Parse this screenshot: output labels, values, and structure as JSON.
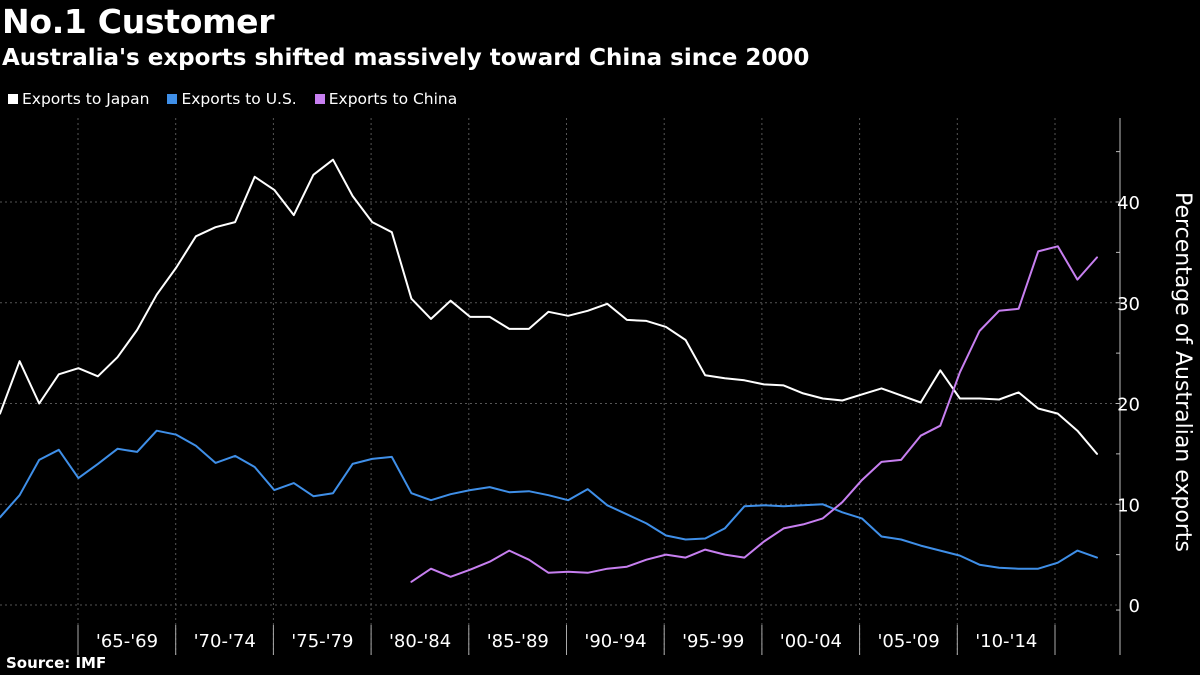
{
  "header": {
    "title": "No.1 Customer",
    "subtitle": "Australia's exports shifted massively toward China since 2000"
  },
  "legend": [
    {
      "label": "Exports to Japan",
      "color": "#ffffff"
    },
    {
      "label": "Exports to U.S.",
      "color": "#3f8fe8"
    },
    {
      "label": "Exports to China",
      "color": "#c77ff0"
    }
  ],
  "source": "Source: IMF",
  "chart_data": {
    "type": "line",
    "title": "No.1 Customer",
    "subtitle": "Australia's exports shifted massively toward China since 2000",
    "xlabel": "",
    "ylabel": "Percentage of Australian exports",
    "ylim": [
      -1.5,
      48
    ],
    "yticks": [
      0,
      10,
      20,
      30,
      40
    ],
    "xlim": [
      1960,
      2017
    ],
    "x_ticklabels": [
      {
        "label": "'65-'69",
        "x": 1965
      },
      {
        "label": "'70-'74",
        "x": 1970
      },
      {
        "label": "'75-'79",
        "x": 1975
      },
      {
        "label": "'80-'84",
        "x": 1980
      },
      {
        "label": "'85-'89",
        "x": 1985
      },
      {
        "label": "'90-'94",
        "x": 1990
      },
      {
        "label": "'95-'99",
        "x": 1995
      },
      {
        "label": "'00-'04",
        "x": 2000
      },
      {
        "label": "'05-'09",
        "x": 2005
      },
      {
        "label": "'10-'14",
        "x": 2010
      }
    ],
    "grid": true,
    "legend_position": "top-left",
    "series": [
      {
        "name": "Exports to Japan",
        "color": "#ffffff",
        "x": [
          1960,
          1961,
          1962,
          1963,
          1964,
          1965,
          1966,
          1967,
          1968,
          1969,
          1970,
          1971,
          1972,
          1973,
          1974,
          1975,
          1976,
          1977,
          1978,
          1979,
          1980,
          1981,
          1982,
          1983,
          1984,
          1985,
          1986,
          1987,
          1988,
          1989,
          1990,
          1991,
          1992,
          1993,
          1994,
          1995,
          1996,
          1997,
          1998,
          1999,
          2000,
          2001,
          2002,
          2003,
          2004,
          2005,
          2006,
          2007,
          2008,
          2009,
          2010,
          2011,
          2012,
          2013,
          2014,
          2015,
          2016
        ],
        "values": [
          19.0,
          24.2,
          20.0,
          22.9,
          23.5,
          22.7,
          24.6,
          27.3,
          30.8,
          33.5,
          36.6,
          37.5,
          38.0,
          42.5,
          41.2,
          38.7,
          42.7,
          44.2,
          40.6,
          38.0,
          37.0,
          30.4,
          28.4,
          30.2,
          28.6,
          28.6,
          27.4,
          27.4,
          29.1,
          28.7,
          29.2,
          29.9,
          28.3,
          28.2,
          27.6,
          26.3,
          22.8,
          22.5,
          22.3,
          21.9,
          21.8,
          21.0,
          20.5,
          20.3,
          20.9,
          21.5,
          20.8,
          20.1,
          23.3,
          20.5,
          20.5,
          20.4,
          21.1,
          19.5,
          19.0,
          17.3,
          15.0
        ]
      },
      {
        "name": "Exports to U.S.",
        "color": "#3f8fe8",
        "x": [
          1960,
          1961,
          1962,
          1963,
          1964,
          1965,
          1966,
          1967,
          1968,
          1969,
          1970,
          1971,
          1972,
          1973,
          1974,
          1975,
          1976,
          1977,
          1978,
          1979,
          1980,
          1981,
          1982,
          1983,
          1984,
          1985,
          1986,
          1987,
          1988,
          1989,
          1990,
          1991,
          1992,
          1993,
          1994,
          1995,
          1996,
          1997,
          1998,
          1999,
          2000,
          2001,
          2002,
          2003,
          2004,
          2005,
          2006,
          2007,
          2008,
          2009,
          2010,
          2011,
          2012,
          2013,
          2014,
          2015,
          2016
        ],
        "values": [
          8.7,
          10.9,
          14.4,
          15.4,
          12.6,
          14.0,
          15.5,
          15.2,
          17.3,
          16.9,
          15.8,
          14.1,
          14.8,
          13.7,
          11.4,
          12.1,
          10.8,
          11.1,
          14.0,
          14.5,
          14.7,
          11.1,
          10.4,
          11.0,
          11.4,
          11.7,
          11.2,
          11.3,
          10.9,
          10.4,
          11.5,
          9.9,
          9.0,
          8.1,
          6.9,
          6.5,
          6.6,
          7.6,
          9.8,
          9.9,
          9.8,
          9.9,
          10.0,
          9.2,
          8.6,
          6.8,
          6.5,
          5.9,
          5.4,
          4.9,
          4.0,
          3.7,
          3.6,
          3.6,
          4.2,
          5.4,
          4.7
        ]
      },
      {
        "name": "Exports to China",
        "color": "#c77ff0",
        "x": [
          1981,
          1982,
          1983,
          1984,
          1985,
          1986,
          1987,
          1988,
          1989,
          1990,
          1991,
          1992,
          1993,
          1994,
          1995,
          1996,
          1997,
          1998,
          1999,
          2000,
          2001,
          2002,
          2003,
          2004,
          2005,
          2006,
          2007,
          2008,
          2009,
          2010,
          2011,
          2012,
          2013,
          2014,
          2015,
          2016
        ],
        "values": [
          2.3,
          3.6,
          2.8,
          3.5,
          4.3,
          5.4,
          4.5,
          3.2,
          3.3,
          3.2,
          3.6,
          3.8,
          4.5,
          5.0,
          4.7,
          5.5,
          5.0,
          4.7,
          6.3,
          7.6,
          8.0,
          8.6,
          10.2,
          12.4,
          14.2,
          14.4,
          16.8,
          17.8,
          23.1,
          27.2,
          29.2,
          29.4,
          35.1,
          35.6,
          32.3,
          34.5
        ]
      }
    ]
  }
}
